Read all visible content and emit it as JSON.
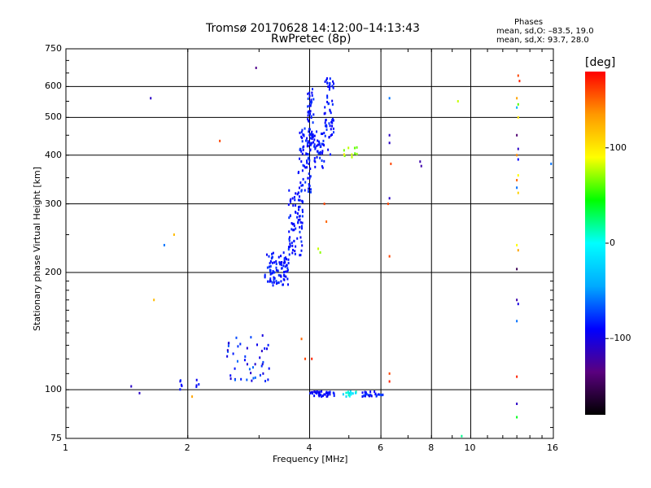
{
  "header": {
    "title_line1": "Tromsø 20170628 14:12:00–14:13:43",
    "title_line2": "RwPretec (8p)"
  },
  "phase_stats": {
    "heading": "Phases",
    "line_o": "mean, sd,O: –83.5, 19.0",
    "line_x": "mean, sd,X: 93.7, 28.0"
  },
  "chart_data": {
    "type": "scatter",
    "title": "Tromsø 20170628 14:12:00–14:13:43",
    "subtitle": "RwPretec (8p)",
    "xlabel": "Frequency [MHz]",
    "ylabel": "Stationary phase Virtual Height [km]",
    "xscale": "log",
    "yscale": "log",
    "xlim": [
      1,
      16
    ],
    "ylim": [
      75,
      750
    ],
    "x_ticks": [
      1,
      2,
      4,
      6,
      8,
      10,
      16
    ],
    "x_tick_labels": [
      "1",
      "2",
      "4",
      "6",
      "8",
      "10",
      "16"
    ],
    "y_ticks": [
      75,
      100,
      200,
      300,
      400,
      500,
      600,
      750
    ],
    "y_tick_labels": [
      "75",
      "100",
      "200",
      "300",
      "400",
      "500",
      "600",
      "750"
    ],
    "grid": true,
    "colorbar": {
      "label": "[deg]",
      "range": [
        -180,
        180
      ],
      "ticks": [
        100,
        0,
        -100
      ],
      "tick_labels": [
        "100",
        "0",
        "–100"
      ],
      "colors": [
        "#000000",
        "#5a007f",
        "#0000ff",
        "#00aaff",
        "#00ffff",
        "#00ff00",
        "#ffff00",
        "#ff9900",
        "#ff0000"
      ]
    },
    "clusters": [
      {
        "f": [
          3.1,
          3.55
        ],
        "h": [
          185,
          225
        ],
        "phase": [
          -95,
          -75
        ],
        "count": 90
      },
      {
        "f": [
          3.55,
          3.85
        ],
        "h": [
          220,
          330
        ],
        "phase": [
          -95,
          -75
        ],
        "count": 80
      },
      {
        "f": [
          3.75,
          4.05
        ],
        "h": [
          320,
          470
        ],
        "phase": [
          -95,
          -75
        ],
        "count": 70
      },
      {
        "f": [
          3.95,
          4.1
        ],
        "h": [
          420,
          600
        ],
        "phase": [
          -95,
          -75
        ],
        "count": 45
      },
      {
        "f": [
          4.1,
          4.35
        ],
        "h": [
          370,
          460
        ],
        "phase": [
          -95,
          -75
        ],
        "count": 40
      },
      {
        "f": [
          4.35,
          4.6
        ],
        "h": [
          400,
          640
        ],
        "phase": [
          -95,
          -75
        ],
        "count": 55
      },
      {
        "f": [
          2.5,
          3.2
        ],
        "h": [
          105,
          140
        ],
        "phase": [
          -110,
          -60
        ],
        "count": 45
      },
      {
        "f": [
          1.88,
          2.15
        ],
        "h": [
          100,
          106
        ],
        "phase": [
          -100,
          -80
        ],
        "count": 9
      },
      {
        "f": [
          4.0,
          4.6
        ],
        "h": [
          96,
          99
        ],
        "phase": [
          -100,
          -80
        ],
        "count": 40
      },
      {
        "f": [
          4.8,
          5.3
        ],
        "h": [
          96,
          99
        ],
        "phase": [
          -40,
          20
        ],
        "count": 16
      },
      {
        "f": [
          5.4,
          6.1
        ],
        "h": [
          96,
          99
        ],
        "phase": [
          -100,
          -70
        ],
        "count": 26
      },
      {
        "f": [
          4.8,
          5.3
        ],
        "h": [
          395,
          420
        ],
        "phase": [
          60,
          100
        ],
        "count": 10
      }
    ],
    "points": [
      {
        "f": 1.62,
        "h": 560,
        "phase": -110
      },
      {
        "f": 2.4,
        "h": 435,
        "phase": 160
      },
      {
        "f": 1.75,
        "h": 235,
        "phase": -60
      },
      {
        "f": 1.85,
        "h": 250,
        "phase": 120
      },
      {
        "f": 1.65,
        "h": 170,
        "phase": 120
      },
      {
        "f": 1.45,
        "h": 102,
        "phase": -110
      },
      {
        "f": 1.52,
        "h": 98,
        "phase": -110
      },
      {
        "f": 2.05,
        "h": 96,
        "phase": 130
      },
      {
        "f": 2.95,
        "h": 670,
        "phase": -130
      },
      {
        "f": 4.35,
        "h": 300,
        "phase": 160
      },
      {
        "f": 4.4,
        "h": 270,
        "phase": 150
      },
      {
        "f": 4.2,
        "h": 230,
        "phase": 80
      },
      {
        "f": 4.25,
        "h": 225,
        "phase": 70
      },
      {
        "f": 3.82,
        "h": 135,
        "phase": 150
      },
      {
        "f": 3.9,
        "h": 120,
        "phase": 160
      },
      {
        "f": 4.05,
        "h": 120,
        "phase": 170
      },
      {
        "f": 6.3,
        "h": 560,
        "phase": -60
      },
      {
        "f": 6.3,
        "h": 450,
        "phase": -110
      },
      {
        "f": 6.3,
        "h": 430,
        "phase": -110
      },
      {
        "f": 6.35,
        "h": 380,
        "phase": 160
      },
      {
        "f": 6.3,
        "h": 310,
        "phase": -110
      },
      {
        "f": 6.25,
        "h": 300,
        "phase": 160
      },
      {
        "f": 6.3,
        "h": 220,
        "phase": 160
      },
      {
        "f": 6.3,
        "h": 110,
        "phase": 160
      },
      {
        "f": 6.3,
        "h": 105,
        "phase": 170
      },
      {
        "f": 7.5,
        "h": 385,
        "phase": -120
      },
      {
        "f": 7.55,
        "h": 375,
        "phase": -120
      },
      {
        "f": 9.3,
        "h": 550,
        "phase": 80
      },
      {
        "f": 9.5,
        "h": 76,
        "phase": 20
      },
      {
        "f": 15.8,
        "h": 380,
        "phase": -60
      },
      {
        "f": 13.1,
        "h": 640,
        "phase": 160
      },
      {
        "f": 13.2,
        "h": 620,
        "phase": 170
      },
      {
        "f": 13.0,
        "h": 560,
        "phase": 130
      },
      {
        "f": 13.1,
        "h": 540,
        "phase": 60
      },
      {
        "f": 13.0,
        "h": 530,
        "phase": -40
      },
      {
        "f": 13.1,
        "h": 500,
        "phase": 100
      },
      {
        "f": 13.0,
        "h": 450,
        "phase": -140
      },
      {
        "f": 13.1,
        "h": 415,
        "phase": -110
      },
      {
        "f": 13.0,
        "h": 400,
        "phase": 140
      },
      {
        "f": 13.1,
        "h": 390,
        "phase": -90
      },
      {
        "f": 13.1,
        "h": 355,
        "phase": 90
      },
      {
        "f": 13.0,
        "h": 345,
        "phase": 150
      },
      {
        "f": 13.0,
        "h": 330,
        "phase": -60
      },
      {
        "f": 13.1,
        "h": 320,
        "phase": 110
      },
      {
        "f": 13.0,
        "h": 235,
        "phase": 90
      },
      {
        "f": 13.1,
        "h": 228,
        "phase": 130
      },
      {
        "f": 13.0,
        "h": 204,
        "phase": -150
      },
      {
        "f": 13.0,
        "h": 170,
        "phase": -120
      },
      {
        "f": 13.1,
        "h": 166,
        "phase": -100
      },
      {
        "f": 13.0,
        "h": 150,
        "phase": -60
      },
      {
        "f": 13.0,
        "h": 108,
        "phase": 170
      },
      {
        "f": 13.0,
        "h": 92,
        "phase": -110
      },
      {
        "f": 13.0,
        "h": 85,
        "phase": 40
      }
    ]
  }
}
